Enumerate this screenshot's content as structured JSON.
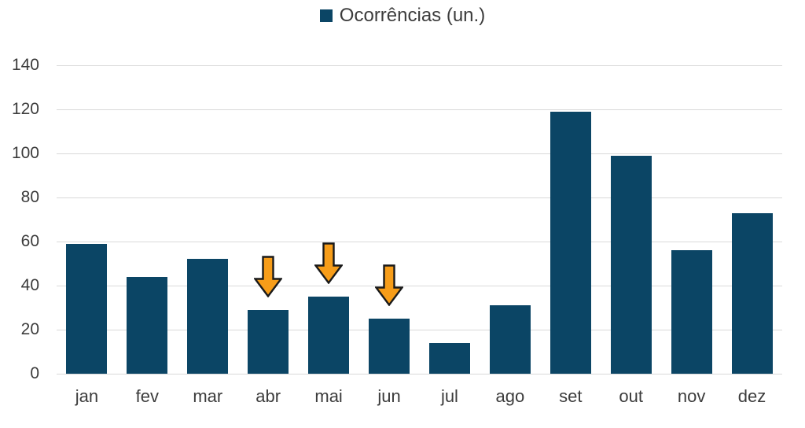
{
  "chart_data": {
    "type": "bar",
    "title": "",
    "legend": "Ocorrências (un.)",
    "legend_position": "top-center",
    "categories": [
      "jan",
      "fev",
      "mar",
      "abr",
      "mai",
      "jun",
      "jul",
      "ago",
      "set",
      "out",
      "nov",
      "dez"
    ],
    "values": [
      59,
      44,
      52,
      29,
      35,
      25,
      14,
      31,
      119,
      99,
      56,
      73
    ],
    "xlabel": "",
    "ylabel": "",
    "ylim": [
      0,
      140
    ],
    "yticks": [
      0,
      20,
      40,
      60,
      80,
      100,
      120,
      140
    ],
    "grid": true,
    "bar_color": "#0b4565",
    "gridline_color": "#d9d9d9",
    "text_color": "#3c3c3c",
    "annotations": [
      {
        "type": "down-arrow",
        "category": "abr",
        "fill": "#f79d19",
        "outline": "#1a1a1a"
      },
      {
        "type": "down-arrow",
        "category": "mai",
        "fill": "#f79d19",
        "outline": "#1a1a1a"
      },
      {
        "type": "down-arrow",
        "category": "jun",
        "fill": "#f79d19",
        "outline": "#1a1a1a"
      }
    ]
  }
}
